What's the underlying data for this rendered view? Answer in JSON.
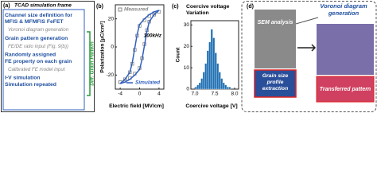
{
  "flow": {
    "label": "(a)",
    "header": "TCAD simulation frame",
    "steps": [
      {
        "lines": [
          "Channel size definition for",
          "MFIS & MFMFIS FeFET"
        ],
        "style": "main"
      },
      {
        "lines": [
          "Voronoi diagram generation"
        ],
        "style": "sub"
      },
      {
        "lines": [
          "Grain pattern generation"
        ],
        "style": "main"
      },
      {
        "lines": [
          "FE/DE ratio input (Fig. 9(b))"
        ],
        "style": "sub"
      },
      {
        "lines": [
          "Randomly assigned",
          "FE property on each grain"
        ],
        "style": "main"
      },
      {
        "lines": [
          "Calibrated FE model input"
        ],
        "style": "sub"
      },
      {
        "lines": [
          "I-V simulation",
          "Simulation repeated"
        ],
        "style": "main"
      }
    ],
    "side": "Diff. Grain Pattern"
  },
  "chart_data": [
    {
      "type": "line",
      "panel_label": "(b)",
      "xlabel": "Electric field [MV/cm]",
      "ylabel": "Polarization [μC/cm²]",
      "annotation": "100kHz",
      "xlim": [
        -5,
        5
      ],
      "xticks": [
        -4,
        0,
        4
      ],
      "ylim": [
        -30,
        30
      ],
      "yticks": [
        -20,
        0,
        20
      ],
      "series": [
        {
          "name": "Measured",
          "color": "#888888",
          "marker": "square",
          "x": [
            -4,
            -3,
            -2,
            -1,
            0,
            0.5,
            1,
            1.5,
            2,
            3,
            4,
            3,
            2,
            1,
            0,
            -0.5,
            -1,
            -1.5,
            -2,
            -3,
            -4
          ],
          "values": [
            -25,
            -24,
            -22,
            -19,
            -15,
            -8,
            2,
            12,
            18,
            23,
            25,
            24,
            22,
            19,
            15,
            8,
            -2,
            -12,
            -18,
            -23,
            -25
          ]
        },
        {
          "name": "Simulated",
          "color": "#2f5fbf",
          "marker": "line",
          "x": [
            -4,
            -3,
            -2,
            -1,
            0,
            0.5,
            1,
            1.5,
            2,
            3,
            4,
            3,
            2,
            1,
            0,
            -0.5,
            -1,
            -1.5,
            -2,
            -3,
            -4
          ],
          "values": [
            -26,
            -25,
            -23,
            -20,
            -16,
            -9,
            1,
            11,
            18,
            23,
            26,
            25,
            23,
            20,
            16,
            9,
            -1,
            -11,
            -18,
            -23,
            -26
          ]
        }
      ]
    },
    {
      "type": "histogram",
      "panel_label": "(c)",
      "title_lines": [
        "Coercive voltage",
        "Variation"
      ],
      "xlabel": "Coercive voltage [V]",
      "ylabel": "Count",
      "color": "#1f6fb2",
      "bins": [
        7.0,
        7.05,
        7.1,
        7.15,
        7.2,
        7.25,
        7.3,
        7.35,
        7.4,
        7.45,
        7.5,
        7.55,
        7.6,
        7.65,
        7.7,
        7.75,
        7.8,
        7.85,
        7.9
      ],
      "counts": [
        1,
        2,
        3,
        5,
        8,
        12,
        18,
        22,
        28,
        24,
        17,
        12,
        8,
        5,
        3,
        2,
        1,
        1
      ],
      "xlim": [
        6.9,
        8.1
      ],
      "xticks": [
        {
          "value": 7,
          "label": "7.0"
        },
        7.5,
        {
          "value": 8,
          "label": "8.0"
        }
      ],
      "ylim": [
        0,
        32
      ],
      "yticks": [
        0,
        10,
        20,
        30
      ]
    }
  ],
  "panel_d": {
    "label": "(d)",
    "sem": "SEM analysis",
    "extract": [
      "Grain size",
      "profile",
      "extraction"
    ],
    "voronoi": [
      "Voronoi diagram",
      "generation"
    ],
    "transferred": "Transferred pattern"
  }
}
